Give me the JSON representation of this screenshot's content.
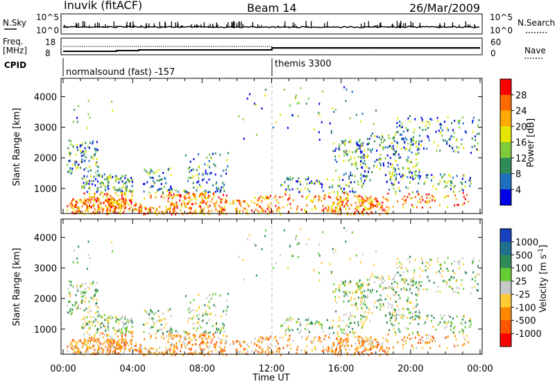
{
  "header": {
    "station": "Inuvik (fitACF)",
    "beam": "Beam 14",
    "date": "26/Mar/2009"
  },
  "noise_panel": {
    "left_label": "N.Sky",
    "right_label": "N.Search",
    "left_ticks": [
      "10^5",
      "10^0"
    ],
    "right_ticks": [
      "10^5",
      "10^0"
    ]
  },
  "freq_panel": {
    "left_label_1": "Freq.",
    "left_label_2": "[MHz]",
    "left_ticks": [
      "18",
      "8"
    ],
    "right_label": "Nave",
    "right_ticks": [
      "60",
      "0"
    ]
  },
  "cpid_panel": {
    "label": "CPID",
    "modes": [
      {
        "name": "normalsound (fast) -157",
        "start_hour": 0
      },
      {
        "name": "themis 3300",
        "start_hour": 12
      }
    ]
  },
  "chart_data": [
    {
      "type": "heatmap",
      "name": "power",
      "xlabel": "",
      "ylabel": "Slant Range [km]",
      "xlim": [
        0,
        24
      ],
      "ylim": [
        180,
        4600
      ],
      "yticks": [
        1000,
        2000,
        3000,
        4000
      ],
      "colorbar_label": "Power [dB]",
      "colorbar_ticks": [
        "28",
        "24",
        "20",
        "16",
        "12",
        "8",
        "4"
      ],
      "colorbar_colors": [
        "#ff0000",
        "#ff6a00",
        "#ffaa00",
        "#e6e600",
        "#7fcc3a",
        "#2e8b57",
        "#1f6fbf",
        "#0000e6"
      ]
    },
    {
      "type": "heatmap",
      "name": "velocity",
      "xlabel": "Time UT",
      "ylabel": "Slant Range [km]",
      "xlim": [
        0,
        24
      ],
      "ylim": [
        180,
        4600
      ],
      "yticks": [
        1000,
        2000,
        3000,
        4000
      ],
      "xtick_labels": [
        "00:00",
        "04:00",
        "08:00",
        "12:00",
        "16:00",
        "20:00",
        "00:00"
      ],
      "colorbar_label": "Velocity [m s",
      "colorbar_label_sup": "-1",
      "colorbar_label_end": "]",
      "colorbar_ticks": [
        "1000",
        "500",
        "100",
        "25",
        "-25",
        "-100",
        "-500",
        "-1000"
      ],
      "colorbar_colors": [
        "#1a3fbf",
        "#1f6f8f",
        "#2e8b57",
        "#66cc33",
        "#c8c8c8",
        "#ffcc33",
        "#ff8800",
        "#ff5500",
        "#ff0000"
      ]
    }
  ]
}
